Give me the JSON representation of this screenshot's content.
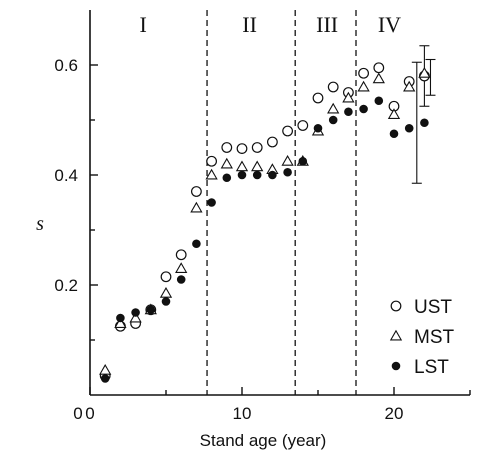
{
  "chart_data": {
    "type": "scatter",
    "xlabel": "Stand age  (year)",
    "ylabel": "s",
    "xlim": [
      0,
      25
    ],
    "ylim": [
      0,
      0.7
    ],
    "x_ticks": [
      0,
      10,
      20
    ],
    "y_ticks": [
      0.2,
      0.4,
      0.6
    ],
    "x_minor_ticks": [
      5,
      15,
      25
    ],
    "y_minor_ticks": [
      0.1,
      0.3,
      0.5
    ],
    "regions": [
      {
        "label": "I",
        "x_center": 3.5
      },
      {
        "label": "II",
        "x_center": 10.5
      },
      {
        "label": "III",
        "x_center": 15.6
      },
      {
        "label": "IV",
        "x_center": 19.7
      }
    ],
    "region_boundaries": [
      7.7,
      13.5,
      17.5
    ],
    "legend_position": "bottom-right",
    "series": [
      {
        "name": "UST",
        "marker": "open-circle",
        "points": [
          [
            1,
            0.035
          ],
          [
            2,
            0.125
          ],
          [
            3,
            0.13
          ],
          [
            4,
            0.155
          ],
          [
            5,
            0.215
          ],
          [
            6,
            0.255
          ],
          [
            7,
            0.37
          ],
          [
            8,
            0.425
          ],
          [
            9,
            0.45
          ],
          [
            10,
            0.448
          ],
          [
            11,
            0.45
          ],
          [
            12,
            0.46
          ],
          [
            13,
            0.48
          ],
          [
            14,
            0.49
          ],
          [
            15,
            0.54
          ],
          [
            16,
            0.56
          ],
          [
            17,
            0.55
          ],
          [
            18,
            0.585
          ],
          [
            19,
            0.595
          ],
          [
            20,
            0.525
          ],
          [
            21,
            0.57
          ],
          [
            22,
            0.58
          ]
        ]
      },
      {
        "name": "MST",
        "marker": "open-triangle",
        "points": [
          [
            1,
            0.045
          ],
          [
            2,
            0.13
          ],
          [
            3,
            0.14
          ],
          [
            4,
            0.155
          ],
          [
            5,
            0.185
          ],
          [
            6,
            0.23
          ],
          [
            7,
            0.34
          ],
          [
            8,
            0.4
          ],
          [
            9,
            0.42
          ],
          [
            10,
            0.415
          ],
          [
            11,
            0.415
          ],
          [
            12,
            0.41
          ],
          [
            13,
            0.425
          ],
          [
            14,
            0.425
          ],
          [
            15,
            0.48
          ],
          [
            16,
            0.52
          ],
          [
            17,
            0.54
          ],
          [
            18,
            0.56
          ],
          [
            19,
            0.575
          ],
          [
            20,
            0.51
          ],
          [
            21,
            0.56
          ],
          [
            22,
            0.585
          ]
        ]
      },
      {
        "name": "LST",
        "marker": "filled-circle",
        "points": [
          [
            1,
            0.03
          ],
          [
            2,
            0.14
          ],
          [
            3,
            0.15
          ],
          [
            4,
            0.155
          ],
          [
            5,
            0.17
          ],
          [
            6,
            0.21
          ],
          [
            7,
            0.275
          ],
          [
            8,
            0.35
          ],
          [
            9,
            0.395
          ],
          [
            10,
            0.4
          ],
          [
            11,
            0.4
          ],
          [
            12,
            0.4
          ],
          [
            13,
            0.405
          ],
          [
            14,
            0.425
          ],
          [
            15,
            0.485
          ],
          [
            16,
            0.5
          ],
          [
            17,
            0.515
          ],
          [
            18,
            0.52
          ],
          [
            19,
            0.535
          ],
          [
            20,
            0.475
          ],
          [
            21,
            0.485
          ],
          [
            22,
            0.495
          ]
        ]
      }
    ],
    "error_bars": [
      {
        "x": 21.5,
        "center": 0.495,
        "low": 0.385,
        "high": 0.605
      },
      {
        "x": 22.0,
        "center": 0.585,
        "low": 0.525,
        "high": 0.635
      },
      {
        "x": 22.4,
        "center": 0.58,
        "low": 0.545,
        "high": 0.61
      }
    ]
  }
}
